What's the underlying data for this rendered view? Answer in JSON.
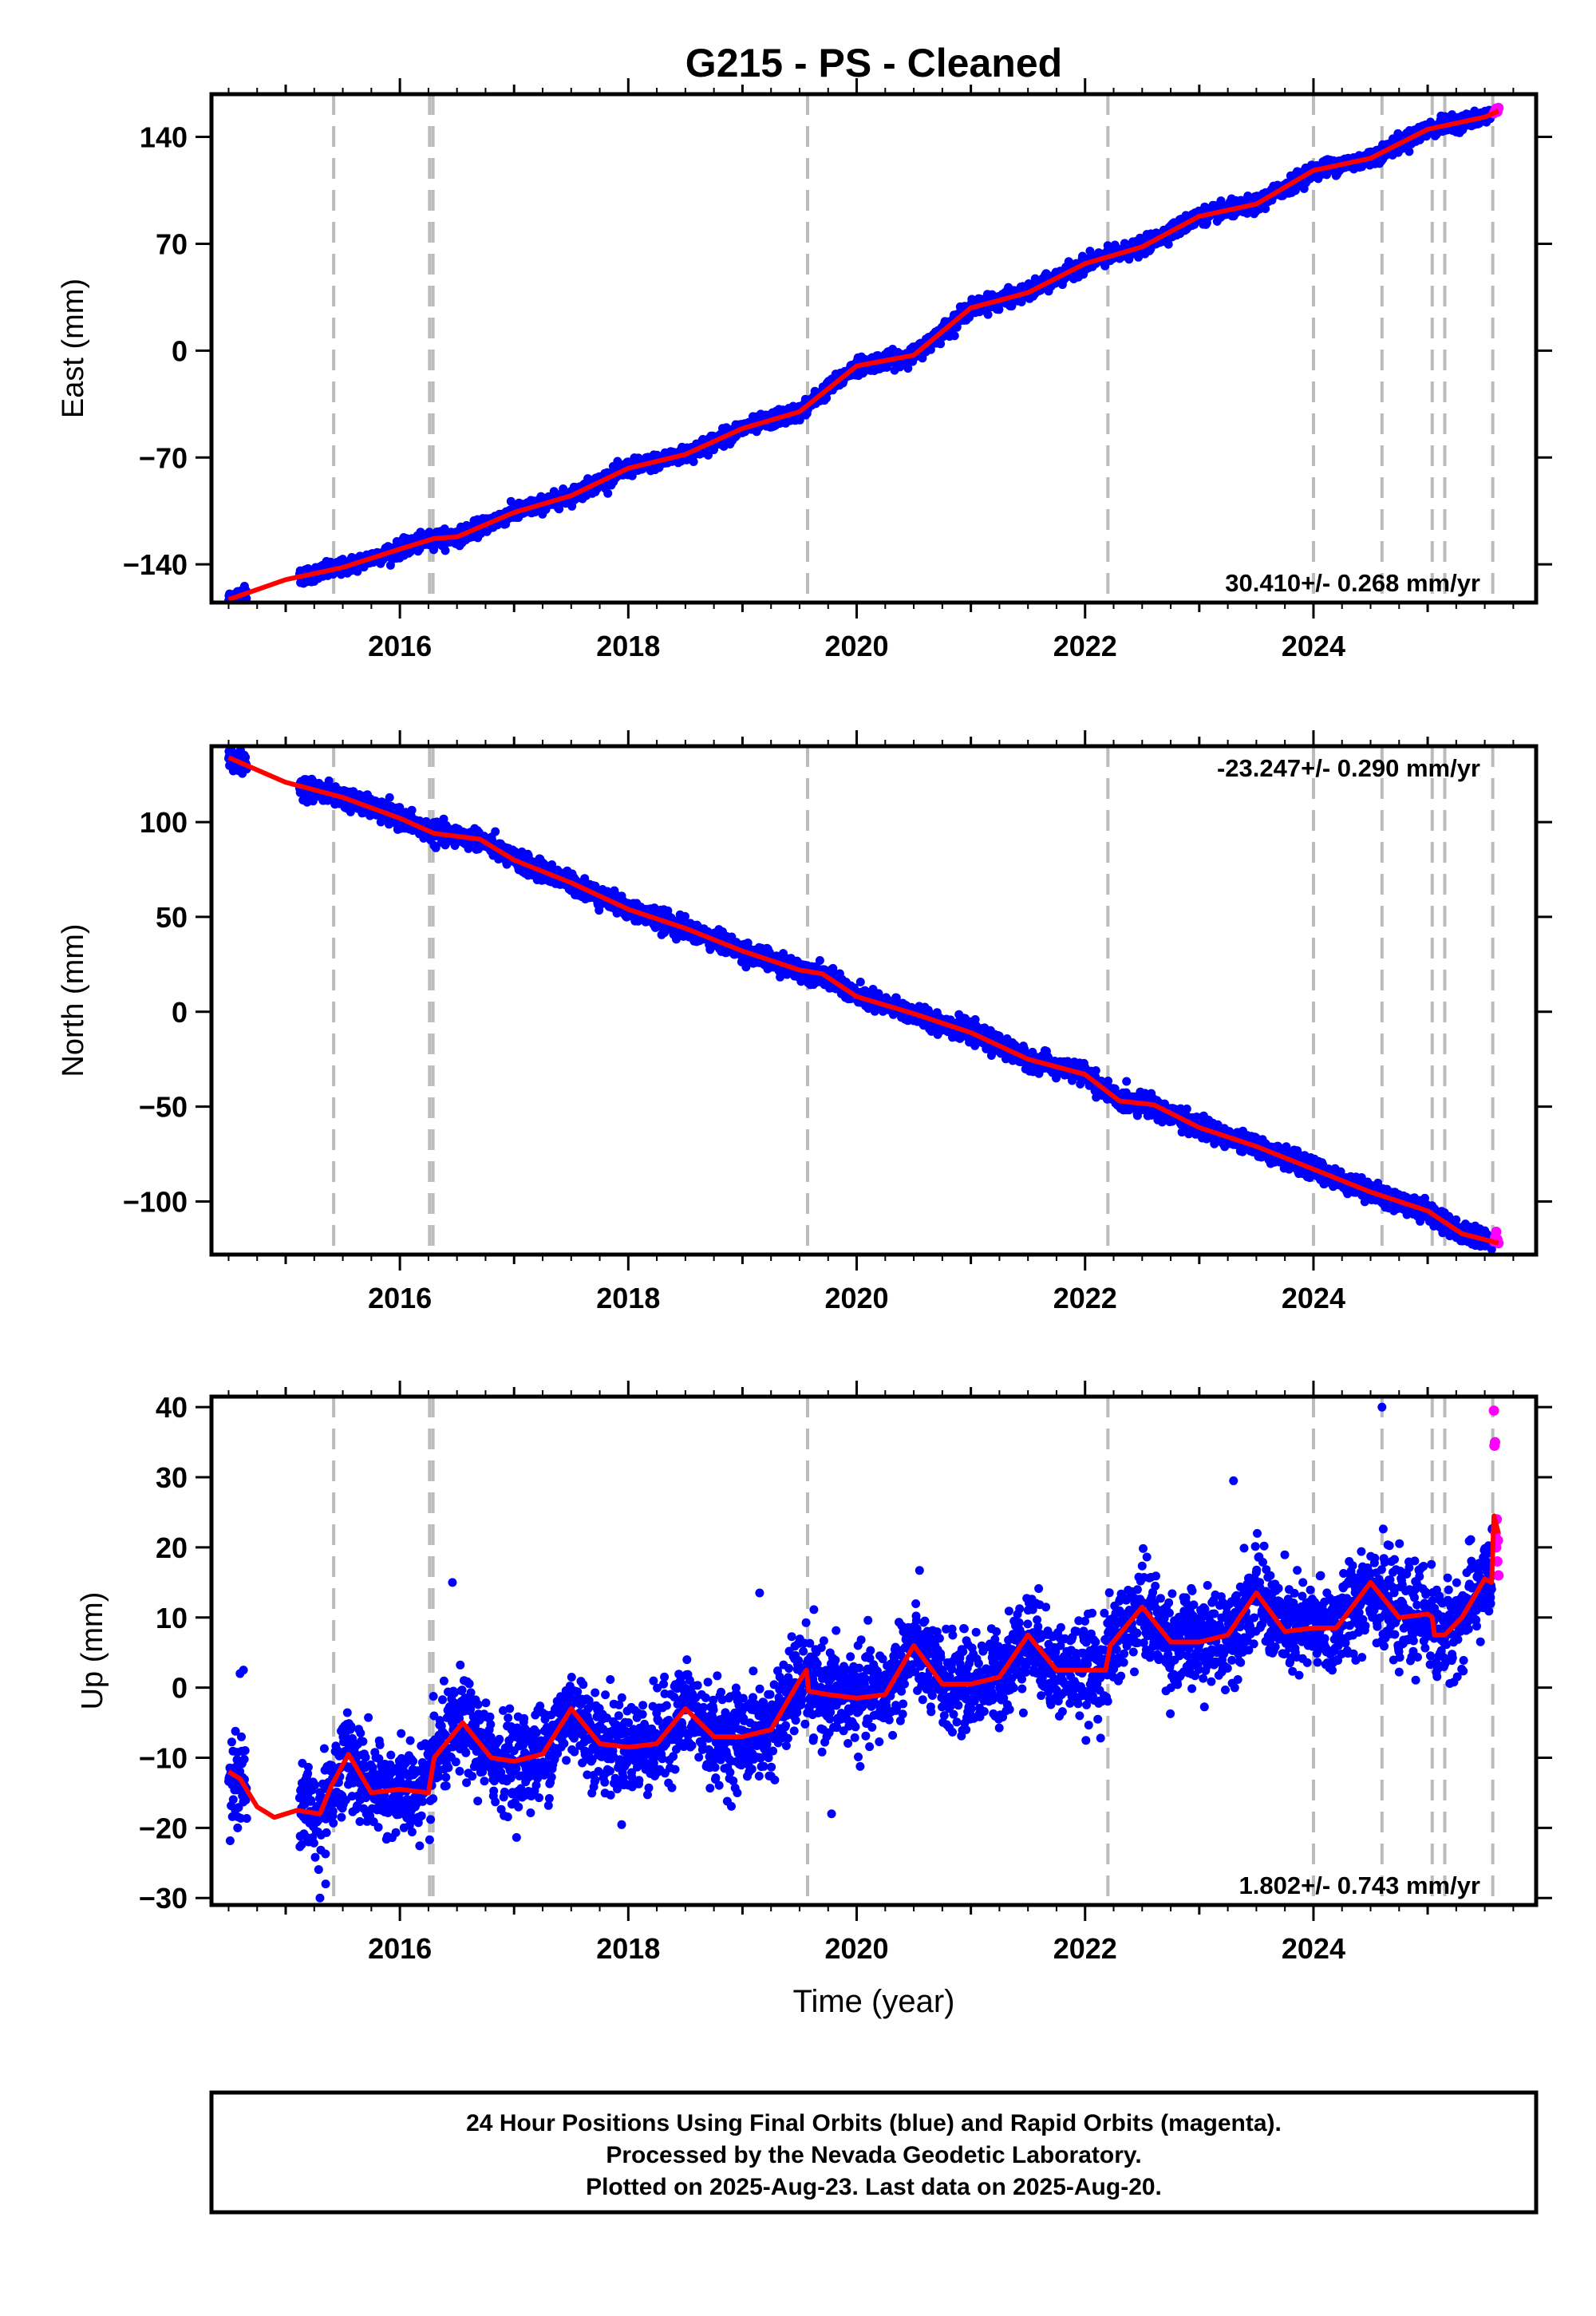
{
  "title": "G215  - PS - Cleaned",
  "colors": {
    "final_orbits": "#0000ff",
    "rapid_orbits": "#ff00ff",
    "model": "#ff0000",
    "steps": "#bbbbbb",
    "frame": "#000000"
  },
  "chart_data": [
    {
      "type": "scatter",
      "panel": "east",
      "ylabel": "East (mm)",
      "xlabel": "",
      "xlim": [
        2014.35,
        2025.95
      ],
      "ylim": [
        -165,
        168
      ],
      "yticks": [
        -140,
        -70,
        0,
        70,
        140
      ],
      "xticks": [
        2016,
        2018,
        2020,
        2022,
        2024
      ],
      "rate_label": "30.410+/- 0.268 mm/yr",
      "rate_position": "bottom-right",
      "step_lines": [
        2015.42,
        2016.26,
        2016.29,
        2019.57,
        2022.2,
        2024.0,
        2024.6,
        2025.04,
        2025.15,
        2025.57
      ],
      "model_curve": {
        "x": [
          2014.5,
          2015.0,
          2015.5,
          2016.0,
          2016.3,
          2016.5,
          2017.0,
          2017.5,
          2018.0,
          2018.5,
          2019.0,
          2019.5,
          2020.0,
          2020.5,
          2021.0,
          2021.5,
          2022.0,
          2022.5,
          2023.0,
          2023.5,
          2024.0,
          2024.5,
          2025.0,
          2025.5,
          2025.62
        ],
        "y": [
          -163,
          -150,
          -142,
          -130,
          -123,
          -122,
          -106,
          -95,
          -77,
          -68,
          -51,
          -40,
          -10,
          -3,
          28,
          38,
          57,
          68,
          88,
          96,
          118,
          126,
          145,
          153,
          157
        ]
      },
      "noise_sd": 2.5,
      "rapid_points": {
        "x": [
          2025.58,
          2025.59,
          2025.6,
          2025.61,
          2025.62
        ],
        "y": [
          155.5,
          157,
          158.5,
          156.5,
          159
        ]
      }
    },
    {
      "type": "scatter",
      "panel": "north",
      "ylabel": "North (mm)",
      "xlabel": "",
      "xlim": [
        2014.35,
        2025.95
      ],
      "ylim": [
        -128,
        140
      ],
      "yticks": [
        -100,
        -50,
        0,
        50,
        100
      ],
      "xticks": [
        2016,
        2018,
        2020,
        2022,
        2024
      ],
      "rate_label": "-23.247+/- 0.290 mm/yr",
      "rate_position": "top-right",
      "step_lines": [
        2015.42,
        2016.26,
        2016.29,
        2019.57,
        2022.2,
        2024.0,
        2024.6,
        2025.04,
        2025.15,
        2025.57
      ],
      "model_curve": {
        "x": [
          2014.5,
          2015.0,
          2015.5,
          2016.0,
          2016.3,
          2016.7,
          2017.0,
          2017.5,
          2018.0,
          2018.5,
          2019.0,
          2019.5,
          2019.7,
          2020.0,
          2020.5,
          2021.0,
          2021.5,
          2022.0,
          2022.3,
          2022.6,
          2023.0,
          2023.5,
          2024.0,
          2024.5,
          2025.0,
          2025.3,
          2025.62
        ],
        "y": [
          134,
          121,
          113,
          102,
          94,
          91,
          80,
          68,
          54,
          44,
          32,
          22,
          20,
          8,
          -1,
          -11,
          -25,
          -33,
          -47,
          -49,
          -61,
          -71,
          -83,
          -95,
          -105,
          -117,
          -122
        ]
      },
      "noise_sd": 2.5,
      "rapid_points": {
        "x": [
          2025.58,
          2025.59,
          2025.6,
          2025.61,
          2025.62
        ],
        "y": [
          -121,
          -119,
          -116,
          -120,
          -122
        ]
      }
    },
    {
      "type": "scatter",
      "panel": "up",
      "ylabel": "Up (mm)",
      "xlabel": "Time (year)",
      "xlim": [
        2014.35,
        2025.95
      ],
      "ylim": [
        -31,
        41.5
      ],
      "yticks": [
        -30,
        -20,
        -10,
        0,
        10,
        20,
        30,
        40
      ],
      "xticks": [
        2016,
        2018,
        2020,
        2022,
        2024
      ],
      "rate_label": "1.802+/- 0.743 mm/yr",
      "rate_position": "bottom-right",
      "step_lines": [
        2015.42,
        2016.26,
        2016.29,
        2019.57,
        2022.2,
        2024.0,
        2024.6,
        2025.04,
        2025.15,
        2025.57
      ],
      "model_curve": {
        "x": [
          2014.5,
          2014.6,
          2014.75,
          2014.9,
          2015.1,
          2015.3,
          2015.4,
          2015.55,
          2015.75,
          2016.0,
          2016.25,
          2016.3,
          2016.55,
          2016.8,
          2017.0,
          2017.25,
          2017.5,
          2017.75,
          2018.0,
          2018.25,
          2018.5,
          2018.75,
          2019.0,
          2019.25,
          2019.5,
          2019.56,
          2019.58,
          2019.75,
          2020.0,
          2020.25,
          2020.5,
          2020.75,
          2021.0,
          2021.25,
          2021.5,
          2021.75,
          2022.0,
          2022.18,
          2022.22,
          2022.5,
          2022.75,
          2023.0,
          2023.25,
          2023.5,
          2023.75,
          2024.0,
          2024.2,
          2024.5,
          2024.75,
          2025.0,
          2025.04,
          2025.06,
          2025.15,
          2025.3,
          2025.5,
          2025.56,
          2025.58,
          2025.62
        ],
        "y": [
          -12,
          -13,
          -17,
          -18.5,
          -17.5,
          -18,
          -14,
          -9.5,
          -15,
          -14.5,
          -15,
          -10,
          -5,
          -10,
          -10.5,
          -9.5,
          -3,
          -8,
          -8.5,
          -8,
          -3,
          -7,
          -7,
          -6,
          1,
          2.5,
          -0.5,
          -1,
          -1.5,
          -1,
          6,
          0.5,
          0.5,
          1.5,
          7.5,
          2.5,
          2.5,
          2.5,
          6,
          11.5,
          6.5,
          6.5,
          7.5,
          13.5,
          8,
          8.5,
          8.5,
          15,
          10,
          10.5,
          10,
          7.5,
          7.5,
          10,
          15.5,
          15,
          24.5,
          22
        ]
      },
      "noise_sd": 3.3,
      "rapid_points": {
        "x": [
          2025.58,
          2025.585,
          2025.59,
          2025.595,
          2025.6,
          2025.605,
          2025.61,
          2025.615,
          2025.62
        ],
        "y": [
          39.5,
          34.5,
          35,
          22,
          20,
          24,
          18,
          21,
          16
        ]
      },
      "outliers": {
        "x": [
          2014.6,
          2014.63,
          2015.3,
          2015.35,
          2016.46,
          2019.15,
          2019.78,
          2023.3,
          2024.6
        ],
        "y": [
          2,
          2.5,
          -30,
          -28,
          15,
          13.5,
          -18,
          29.5,
          40
        ]
      }
    }
  ],
  "footer": {
    "line1": "24 Hour Positions Using Final Orbits (blue) and Rapid Orbits (magenta).",
    "line2": "Processed by the Nevada Geodetic Laboratory.",
    "line3": "Plotted on 2025-Aug-23. Last data on 2025-Aug-20."
  }
}
